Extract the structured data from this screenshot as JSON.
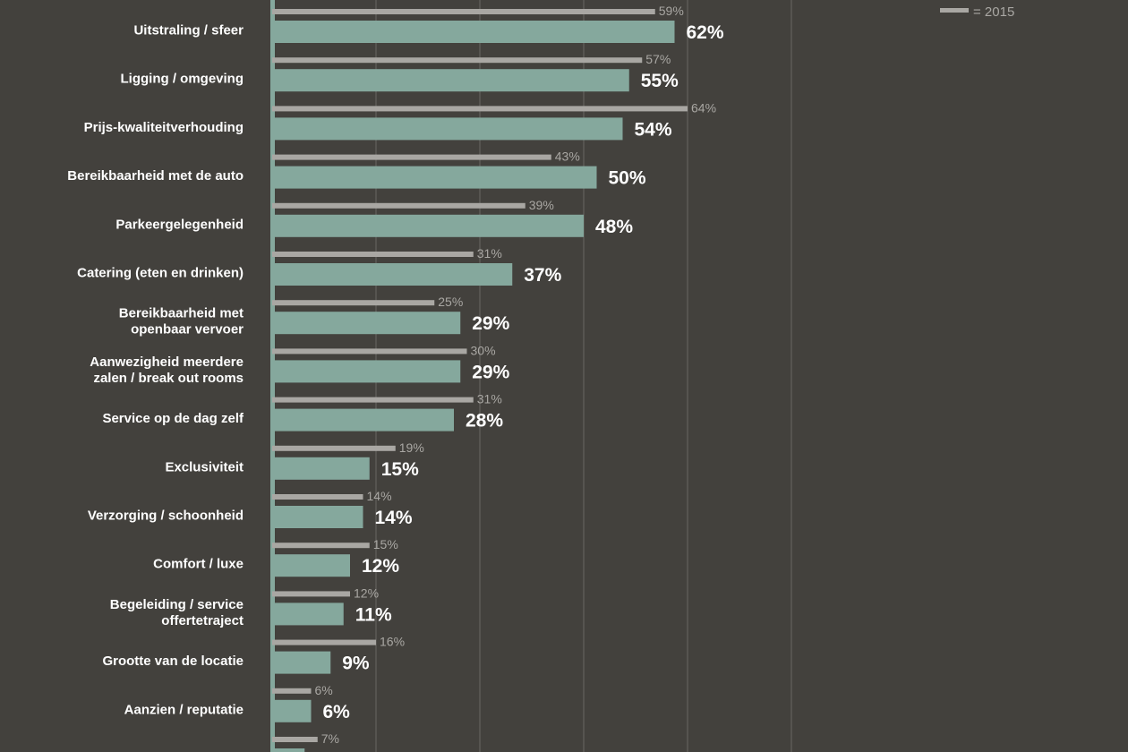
{
  "chart_data": {
    "type": "bar",
    "orientation": "horizontal",
    "categories": [
      [
        "Uitstraling / sfeer"
      ],
      [
        "Ligging / omgeving"
      ],
      [
        "Prijs-kwaliteitverhouding"
      ],
      [
        "Bereikbaarheid met de auto"
      ],
      [
        "Parkeergelegenheid"
      ],
      [
        "Catering (eten en drinken)"
      ],
      [
        "Bereikbaarheid met",
        "openbaar vervoer"
      ],
      [
        "Aanwezigheid meerdere",
        "zalen / break out rooms"
      ],
      [
        "Service op de dag zelf"
      ],
      [
        "Exclusiviteit"
      ],
      [
        "Verzorging / schoonheid"
      ],
      [
        "Comfort / luxe"
      ],
      [
        "Begeleiding / service",
        "offertetraject"
      ],
      [
        "Grootte van de locatie"
      ],
      [
        "Aanzien / reputatie"
      ],
      [
        ""
      ]
    ],
    "series": [
      {
        "values": [
          62,
          55,
          54,
          50,
          48,
          37,
          29,
          29,
          28,
          15,
          14,
          12,
          11,
          9,
          6,
          5
        ],
        "labels": [
          "62%",
          "55%",
          "54%",
          "50%",
          "48%",
          "37%",
          "29%",
          "29%",
          "28%",
          "15%",
          "14%",
          "12%",
          "11%",
          "9%",
          "6%",
          ""
        ],
        "color": "#85a89d"
      },
      {
        "name": "= 2015",
        "values": [
          59,
          57,
          64,
          43,
          39,
          31,
          25,
          30,
          31,
          19,
          14,
          15,
          12,
          16,
          6,
          7
        ],
        "labels": [
          "59%",
          "57%",
          "64%",
          "43%",
          "39%",
          "31%",
          "25%",
          "30%",
          "31%",
          "19%",
          "14%",
          "15%",
          "12%",
          "16%",
          "6%",
          "7%"
        ],
        "color": "#a9a7a3"
      }
    ],
    "xlim": [
      0,
      100
    ],
    "grid": true,
    "legend": "top-right"
  }
}
